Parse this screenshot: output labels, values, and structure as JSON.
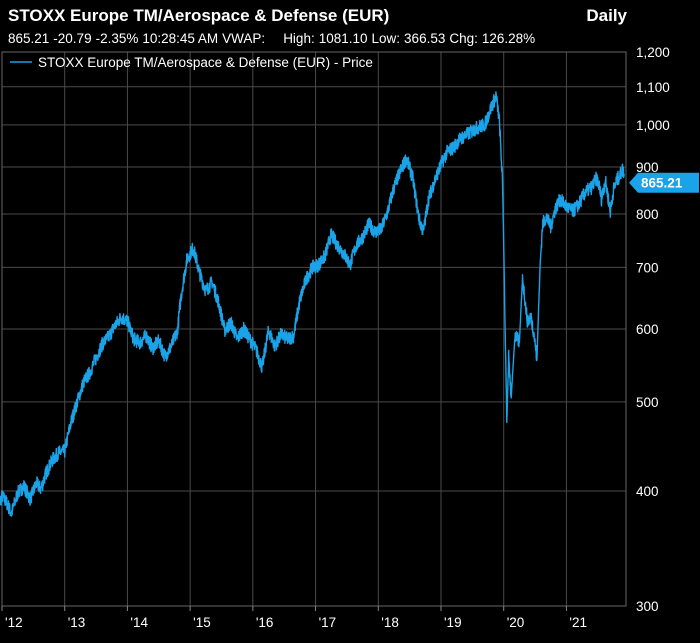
{
  "header": {
    "title": "STOXX Europe TM/Aerospace & Defense (EUR)",
    "frequency": "Daily",
    "last": "865.21",
    "change": "-20.79",
    "change_pct": "-2.35%",
    "time": "10:28:45 AM",
    "vwap_label": "VWAP:",
    "high_label": "High:",
    "high": "1081.10",
    "low_label": "Low:",
    "low": "366.53",
    "chg_label": "Chg:",
    "chg": "126.28%"
  },
  "colors": {
    "line": "#1aa3e8",
    "grid": "#555555",
    "background": "#000000"
  },
  "chart_data": {
    "type": "line",
    "title": "STOXX Europe TM/Aerospace & Defense (EUR)",
    "yscale": "log",
    "ylim": [
      300,
      1200
    ],
    "y_ticks": [
      300,
      400,
      500,
      600,
      700,
      800,
      900,
      1000,
      1100,
      1200
    ],
    "y_tick_labels": [
      "300",
      "400",
      "500",
      "600",
      "700",
      "800",
      "900",
      "1,000",
      "1,100",
      "1,200"
    ],
    "xlim": [
      2012.0,
      2021.95
    ],
    "x_ticks": [
      2012.0,
      2013.0,
      2014.0,
      2015.0,
      2016.0,
      2017.0,
      2018.0,
      2019.0,
      2020.0,
      2021.0
    ],
    "x_tick_labels": [
      "'12",
      "'13",
      "'14",
      "'15",
      "'16",
      "'17",
      "'18",
      "'19",
      "'20",
      "'21"
    ],
    "legend": "STOXX Europe TM/Aerospace & Defense (EUR) - Price",
    "last_value_label": "865.21",
    "series": [
      {
        "name": "STOXX Europe TM/Aerospace & Defense (EUR) - Price",
        "x": [
          2011.92,
          2012.0,
          2012.08,
          2012.15,
          2012.25,
          2012.35,
          2012.45,
          2012.55,
          2012.62,
          2012.7,
          2012.8,
          2012.9,
          2013.0,
          2013.1,
          2013.2,
          2013.3,
          2013.4,
          2013.5,
          2013.6,
          2013.7,
          2013.8,
          2013.9,
          2014.0,
          2014.1,
          2014.2,
          2014.3,
          2014.4,
          2014.5,
          2014.6,
          2014.7,
          2014.8,
          2014.85,
          2014.95,
          2015.05,
          2015.15,
          2015.25,
          2015.35,
          2015.45,
          2015.55,
          2015.65,
          2015.75,
          2015.85,
          2015.95,
          2016.05,
          2016.15,
          2016.25,
          2016.35,
          2016.45,
          2016.55,
          2016.65,
          2016.75,
          2016.85,
          2016.95,
          2017.05,
          2017.15,
          2017.25,
          2017.35,
          2017.45,
          2017.55,
          2017.65,
          2017.75,
          2017.85,
          2017.95,
          2018.05,
          2018.15,
          2018.25,
          2018.35,
          2018.45,
          2018.55,
          2018.6,
          2018.65,
          2018.72,
          2018.8,
          2018.9,
          2019.0,
          2019.1,
          2019.2,
          2019.3,
          2019.4,
          2019.5,
          2019.6,
          2019.7,
          2019.8,
          2019.88,
          2019.93,
          2019.98,
          2020.02,
          2020.05,
          2020.08,
          2020.12,
          2020.18,
          2020.25,
          2020.3,
          2020.38,
          2020.43,
          2020.48,
          2020.53,
          2020.58,
          2020.62,
          2020.68,
          2020.75,
          2020.82,
          2020.9,
          2021.0,
          2021.1,
          2021.2,
          2021.3,
          2021.4,
          2021.48,
          2021.52,
          2021.56,
          2021.62,
          2021.7,
          2021.75,
          2021.8,
          2021.85,
          2021.89,
          2021.92
        ],
        "values": [
          382,
          395,
          388,
          378,
          398,
          405,
          392,
          408,
          402,
          418,
          432,
          440,
          442,
          475,
          500,
          525,
          538,
          558,
          578,
          588,
          605,
          618,
          612,
          585,
          580,
          590,
          572,
          582,
          560,
          575,
          598,
          648,
          715,
          735,
          690,
          660,
          675,
          642,
          598,
          610,
          585,
          600,
          585,
          570,
          545,
          598,
          575,
          592,
          585,
          590,
          645,
          680,
          700,
          705,
          720,
          760,
          740,
          725,
          705,
          740,
          755,
          780,
          765,
          770,
          805,
          855,
          890,
          920,
          875,
          830,
          790,
          765,
          830,
          870,
          905,
          935,
          945,
          965,
          975,
          985,
          995,
          1000,
          1045,
          1075,
          1010,
          870,
          610,
          475,
          560,
          505,
          590,
          580,
          680,
          610,
          620,
          595,
          555,
          700,
          780,
          795,
          775,
          810,
          830,
          815,
          805,
          820,
          845,
          855,
          875,
          860,
          830,
          870,
          805,
          850,
          870,
          880,
          895,
          885
        ]
      }
    ]
  }
}
